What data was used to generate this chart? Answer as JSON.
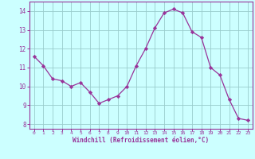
{
  "x": [
    0,
    1,
    2,
    3,
    4,
    5,
    6,
    7,
    8,
    9,
    10,
    11,
    12,
    13,
    14,
    15,
    16,
    17,
    18,
    19,
    20,
    21,
    22,
    23
  ],
  "y": [
    11.6,
    11.1,
    10.4,
    10.3,
    10.0,
    10.2,
    9.7,
    9.1,
    9.3,
    9.5,
    10.0,
    11.1,
    12.0,
    13.1,
    13.9,
    14.1,
    13.9,
    12.9,
    12.6,
    11.0,
    10.6,
    9.3,
    8.3,
    8.2
  ],
  "xlim": [
    -0.5,
    23.5
  ],
  "ylim": [
    7.75,
    14.5
  ],
  "yticks": [
    8,
    9,
    10,
    11,
    12,
    13,
    14
  ],
  "xticks": [
    0,
    1,
    2,
    3,
    4,
    5,
    6,
    7,
    8,
    9,
    10,
    11,
    12,
    13,
    14,
    15,
    16,
    17,
    18,
    19,
    20,
    21,
    22,
    23
  ],
  "xlabel": "Windchill (Refroidissement éolien,°C)",
  "line_color": "#993399",
  "marker_color": "#993399",
  "bg_color": "#ccffff",
  "grid_color": "#99cccc",
  "tick_color": "#993399",
  "label_color": "#993399",
  "spine_color": "#993399"
}
